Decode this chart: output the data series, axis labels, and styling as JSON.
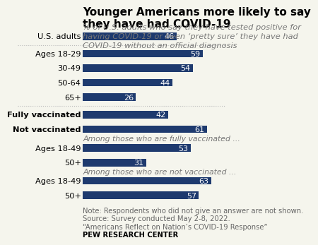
{
  "title": "Younger Americans more likely to say\nthey have had COVID-19",
  "subtitle": "% of U.S. adults who say they have tested positive for\nhaving COVID-19 or been ‘pretty sure’ they have had\nCOVID-19 without an official diagnosis",
  "categories": [
    "U.S. adults",
    "Ages 18-29",
    "30-49",
    "50-64",
    "65+",
    "Fully vaccinated",
    "Not vaccinated",
    "Ages 18-49",
    "50+",
    "Ages 18-49 ",
    "50+  "
  ],
  "values": [
    46,
    59,
    54,
    44,
    26,
    42,
    61,
    53,
    31,
    63,
    57
  ],
  "bar_color": "#1e3a6e",
  "label_color": "#ffffff",
  "background_color": "#f5f5ed",
  "note_line1": "Note: Respondents who did not give an answer are not shown.",
  "note_line2": "Source: Survey conducted May 2-8, 2022.",
  "note_line3": "“Americans Reflect on Nation’s COVID-19 Response”",
  "source_bold": "PEW RESEARCH CENTER",
  "group1_label": "Among those who are fully vaccinated ...",
  "group2_label": "Among those who are not vaccinated ...",
  "bold_indices": [
    5,
    6
  ],
  "xlim_max": 70,
  "title_fontsize": 11,
  "subtitle_fontsize": 8.2,
  "bar_label_fontsize": 8,
  "category_fontsize": 8.2,
  "note_fontsize": 7.2,
  "section_fontsize": 7.8
}
